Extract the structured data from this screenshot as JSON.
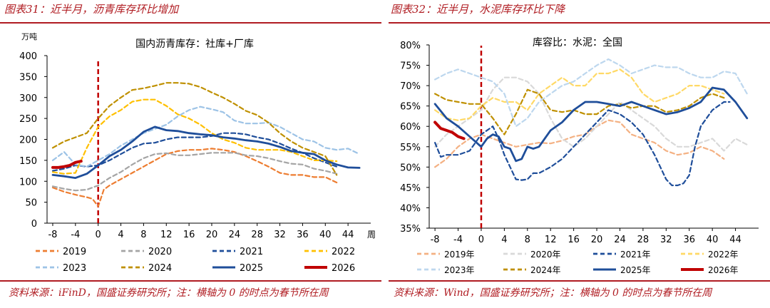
{
  "panels": [
    {
      "fig_label": "图表31：近半月，沥青库存环比增加",
      "source": "资料来源：iFinD，国盛证券研究所；注：横轴为 0 的时点为春节所在周",
      "chart_data": {
        "type": "line",
        "title": "国内沥青库存：社库+厂库",
        "ylabel": "万吨",
        "xlabel": "周",
        "ylim": [
          0,
          400
        ],
        "yticks": [
          "0",
          "50",
          "100",
          "150",
          "200",
          "250",
          "300",
          "350",
          "400"
        ],
        "xlim": [
          -9,
          48
        ],
        "xticks": [
          "-8",
          "-4",
          "0",
          "4",
          "8",
          "12",
          "16",
          "20",
          "24",
          "28",
          "32",
          "36",
          "40",
          "44"
        ],
        "marker_x": 0,
        "series": [
          {
            "name": "2019",
            "color": "#ed7d31",
            "dash": true,
            "x": [
              -8,
              -6,
              -4,
              -2,
              -1,
              0,
              1,
              2,
              4,
              6,
              8,
              10,
              12,
              14,
              16,
              18,
              20,
              22,
              24,
              26,
              28,
              30,
              32,
              34,
              36,
              38,
              40,
              42
            ],
            "y": [
              85,
              75,
              68,
              62,
              58,
              40,
              80,
              90,
              105,
              120,
              135,
              150,
              165,
              172,
              175,
              175,
              178,
              175,
              170,
              160,
              148,
              135,
              120,
              115,
              115,
              110,
              110,
              97
            ]
          },
          {
            "name": "2020",
            "color": "#a5a5a5",
            "dash": true,
            "x": [
              -8,
              -6,
              -4,
              -2,
              0,
              2,
              4,
              6,
              8,
              10,
              12,
              14,
              16,
              18,
              20,
              22,
              24,
              26,
              28,
              30,
              32,
              34,
              36,
              38,
              40,
              42
            ],
            "y": [
              88,
              82,
              78,
              80,
              90,
              108,
              122,
              140,
              155,
              165,
              167,
              162,
              162,
              165,
              168,
              168,
              168,
              162,
              160,
              155,
              148,
              142,
              140,
              130,
              125,
              118
            ]
          },
          {
            "name": "2021",
            "color": "#1f4e9a",
            "dash": true,
            "x": [
              -8,
              -6,
              -4,
              -2,
              0,
              2,
              4,
              6,
              8,
              10,
              12,
              14,
              16,
              18,
              20,
              22,
              24,
              26,
              28,
              30,
              32,
              34,
              36,
              38,
              40,
              42
            ],
            "y": [
              125,
              130,
              138,
              135,
              138,
              150,
              165,
              180,
              190,
              192,
              200,
              205,
              205,
              205,
              208,
              215,
              215,
              212,
              205,
              200,
              190,
              178,
              168,
              155,
              145,
              135
            ]
          },
          {
            "name": "2022",
            "color": "#ffc000",
            "dash": true,
            "x": [
              -8,
              -6,
              -4,
              -2,
              0,
              2,
              4,
              6,
              8,
              10,
              12,
              14,
              16,
              18,
              20,
              22,
              24,
              26,
              28,
              30,
              32,
              34,
              36,
              38,
              40,
              42
            ],
            "y": [
              122,
              118,
              120,
              180,
              230,
              255,
              270,
              290,
              295,
              295,
              280,
              260,
              250,
              235,
              215,
              200,
              192,
              180,
              175,
              175,
              175,
              170,
              160,
              150,
              150,
              148
            ]
          },
          {
            "name": "2023",
            "color": "#9dc3e6",
            "dash": true,
            "x": [
              -8,
              -6,
              -4,
              -2,
              0,
              2,
              4,
              6,
              8,
              10,
              12,
              14,
              16,
              18,
              20,
              22,
              24,
              26,
              28,
              30,
              32,
              34,
              36,
              38,
              40,
              42,
              44,
              46
            ],
            "y": [
              150,
              170,
              140,
              135,
              150,
              165,
              185,
              200,
              215,
              225,
              235,
              255,
              270,
              278,
              272,
              265,
              245,
              238,
              238,
              240,
              230,
              215,
              200,
              195,
              180,
              175,
              178,
              165
            ]
          },
          {
            "name": "2024",
            "color": "#bf9000",
            "dash": true,
            "x": [
              -8,
              -6,
              -4,
              -2,
              0,
              2,
              4,
              6,
              8,
              10,
              12,
              14,
              16,
              18,
              20,
              22,
              24,
              26,
              28,
              30,
              32,
              34,
              36,
              38,
              40,
              42
            ],
            "y": [
              180,
              195,
              205,
              215,
              250,
              280,
              300,
              318,
              322,
              328,
              335,
              335,
              333,
              325,
              312,
              300,
              285,
              268,
              258,
              240,
              215,
              195,
              180,
              170,
              160,
              115
            ]
          },
          {
            "name": "2025",
            "color": "#1f4e9a",
            "dash": false,
            "x": [
              -8,
              -6,
              -4,
              -2,
              0,
              2,
              4,
              6,
              8,
              10,
              12,
              14,
              16,
              18,
              20,
              22,
              24,
              26,
              28,
              30,
              32,
              34,
              36,
              38,
              40,
              42,
              44,
              46
            ],
            "y": [
              115,
              112,
              108,
              118,
              138,
              160,
              175,
              195,
              218,
              230,
              222,
              220,
              215,
              212,
              210,
              205,
              202,
              198,
              195,
              190,
              182,
              172,
              168,
              165,
              150,
              140,
              133,
              132
            ]
          },
          {
            "name": "2026",
            "color": "#c00000",
            "dash": false,
            "x": [
              -8,
              -7,
              -6,
              -5,
              -4,
              -3
            ],
            "y": [
              133,
              133,
              135,
              138,
              145,
              148
            ]
          }
        ]
      }
    },
    {
      "fig_label": "图表32：近半月，水泥库存环比下降",
      "source": "资料来源：Wind，国盛证券研究所；注：横轴为 0 的时点为春节所在周",
      "chart_data": {
        "type": "line",
        "title": "库容比：水泥：全国",
        "ylabel": "",
        "xlabel": "",
        "ylim": [
          35,
          80
        ],
        "yticks": [
          "35%",
          "40%",
          "45%",
          "50%",
          "55%",
          "60%",
          "65%",
          "70%",
          "75%",
          "80%"
        ],
        "xlim": [
          -9,
          48
        ],
        "xticks": [
          "-8",
          "-4",
          "0",
          "4",
          "8",
          "12",
          "16",
          "20",
          "24",
          "28",
          "32",
          "36",
          "40",
          "44"
        ],
        "marker_x": 0,
        "series": [
          {
            "name": "2019年",
            "color": "#f4b183",
            "dash": true,
            "x": [
              -8,
              -6,
              -4,
              -2,
              0,
              2,
              4,
              6,
              8,
              10,
              12,
              14,
              16,
              18,
              20,
              22,
              24,
              26,
              28,
              30,
              32,
              34,
              36,
              38,
              40,
              42
            ],
            "y": [
              50,
              52,
              55,
              57,
              58,
              57,
              56,
              55,
              55.5,
              56,
              55.8,
              56.5,
              57.5,
              58,
              60,
              61.5,
              61,
              58,
              57,
              56,
              54,
              53,
              53.5,
              55,
              54,
              52
            ]
          },
          {
            "name": "2020年",
            "color": "#d9d9d9",
            "dash": true,
            "x": [
              -8,
              -6,
              -4,
              -2,
              0,
              2,
              4,
              6,
              8,
              10,
              12,
              14,
              16,
              18,
              20,
              22,
              24,
              26,
              28,
              30,
              32,
              34,
              36,
              38,
              40,
              42,
              44,
              46
            ],
            "y": [
              55,
              58,
              60,
              62,
              64,
              69,
              72,
              72,
              71,
              68,
              62,
              57,
              55,
              57,
              60,
              63,
              66,
              64,
              62,
              60,
              57,
              55,
              55,
              56,
              57,
              54,
              57,
              55.5
            ]
          },
          {
            "name": "2021年",
            "color": "#1f4e9a",
            "dash": true,
            "x": [
              -8,
              -7,
              -6,
              -4,
              -2,
              0,
              2,
              3,
              4,
              5,
              6,
              7,
              8,
              9,
              10,
              12,
              14,
              16,
              18,
              20,
              22,
              24,
              26,
              28,
              30,
              32,
              33,
              34,
              35,
              36,
              37,
              38,
              40,
              42,
              43
            ],
            "y": [
              56,
              52.5,
              53,
              53,
              54,
              58,
              60,
              57,
              53,
              50,
              47,
              46.8,
              47,
              48.5,
              48.5,
              50,
              52,
              55,
              58,
              61,
              64,
              63,
              61,
              58,
              53,
              47,
              45.5,
              45.5,
              46,
              48,
              55,
              60,
              64,
              66,
              66
            ]
          },
          {
            "name": "2022年",
            "color": "#ffd966",
            "dash": true,
            "x": [
              -8,
              -6,
              -4,
              -2,
              0,
              2,
              4,
              6,
              8,
              10,
              12,
              14,
              16,
              18,
              20,
              22,
              24,
              26,
              28,
              30,
              32,
              34,
              36,
              38,
              40,
              42
            ],
            "y": [
              64,
              62,
              61.5,
              62,
              65,
              67,
              66,
              66,
              64,
              68,
              70,
              72,
              70,
              70,
              73,
              73,
              74,
              72,
              68,
              66,
              67,
              68,
              70,
              70,
              69,
              68
            ]
          },
          {
            "name": "2023年",
            "color": "#bdd7ee",
            "dash": true,
            "x": [
              -8,
              -6,
              -4,
              -2,
              0,
              2,
              4,
              6,
              8,
              10,
              12,
              14,
              16,
              18,
              20,
              22,
              24,
              26,
              28,
              30,
              32,
              34,
              36,
              38,
              40,
              42,
              44,
              46
            ],
            "y": [
              71.5,
              73,
              74,
              73,
              72,
              71,
              68,
              60,
              62,
              66,
              68,
              70,
              71,
              73,
              75,
              76.5,
              75,
              73,
              74,
              75,
              74.5,
              74.5,
              73,
              72,
              72,
              73.5,
              73,
              68
            ]
          },
          {
            "name": "2024年",
            "color": "#bf9000",
            "dash": true,
            "x": [
              -8,
              -6,
              -4,
              -2,
              0,
              2,
              4,
              6,
              8,
              10,
              12,
              14,
              16,
              18,
              20,
              22,
              24,
              26,
              28,
              30,
              32,
              34,
              36,
              38,
              40,
              42
            ],
            "y": [
              68,
              66.5,
              66,
              65.5,
              65.5,
              62,
              58,
              63,
              69,
              68,
              64,
              63.5,
              64,
              63,
              63,
              65,
              65.5,
              64.5,
              65,
              65,
              63.5,
              64,
              65,
              67,
              68,
              67
            ]
          },
          {
            "name": "2025年",
            "color": "#1f4e9a",
            "dash": false,
            "x": [
              -8,
              -6,
              -4,
              -2,
              0,
              1,
              2,
              3,
              4,
              5,
              6,
              7,
              8,
              9,
              10,
              12,
              14,
              16,
              18,
              20,
              22,
              24,
              26,
              28,
              30,
              32,
              34,
              36,
              38,
              40,
              42,
              44,
              46
            ],
            "y": [
              65.5,
              62,
              60,
              57.5,
              55,
              57,
              58,
              57.5,
              55,
              54.5,
              51.5,
              52,
              55,
              54.5,
              55,
              59,
              61,
              64,
              66,
              66,
              65.5,
              65,
              66,
              65,
              64,
              63,
              63.5,
              64.5,
              66,
              69.5,
              69,
              66,
              62
            ]
          },
          {
            "name": "2026年",
            "color": "#c00000",
            "dash": false,
            "x": [
              -8,
              -7,
              -6,
              -5,
              -4,
              -3
            ],
            "y": [
              61,
              59.5,
              59,
              58.5,
              57.5,
              57
            ]
          }
        ]
      }
    }
  ]
}
